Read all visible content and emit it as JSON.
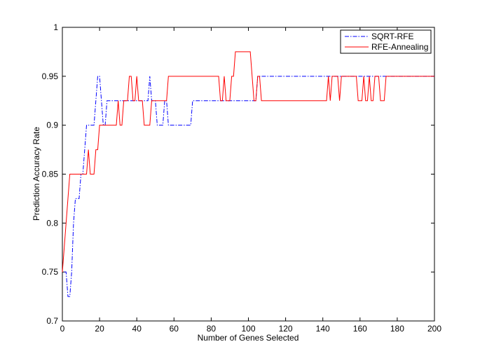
{
  "chart_data": {
    "type": "line",
    "title": "",
    "xlabel": "Number of Genes Selected",
    "ylabel": "Prediction Accuracy Rate",
    "xlim": [
      0,
      200
    ],
    "ylim": [
      0.7,
      1
    ],
    "xticks": [
      0,
      20,
      40,
      60,
      80,
      100,
      120,
      140,
      160,
      180,
      200
    ],
    "yticks": [
      0.7,
      0.75,
      0.8,
      0.85,
      0.9,
      0.95,
      1
    ],
    "xtick_labels": [
      "0",
      "20",
      "40",
      "60",
      "80",
      "100",
      "120",
      "140",
      "160",
      "180",
      "200"
    ],
    "ytick_labels": [
      "0.7",
      "0.75",
      "0.8",
      "0.85",
      "0.9",
      "0.95",
      "1"
    ],
    "grid": false,
    "legend_position": "top-right",
    "series": [
      {
        "name": "SQRT-RFE",
        "color": "#0000ff",
        "style": "dash-dot",
        "points": [
          [
            1,
            0.75
          ],
          [
            2,
            0.75
          ],
          [
            3,
            0.725
          ],
          [
            4,
            0.725
          ],
          [
            5,
            0.75
          ],
          [
            6,
            0.8
          ],
          [
            7,
            0.825
          ],
          [
            8,
            0.825
          ],
          [
            9,
            0.825
          ],
          [
            10,
            0.85
          ],
          [
            11,
            0.85
          ],
          [
            12,
            0.875
          ],
          [
            13,
            0.9
          ],
          [
            14,
            0.9
          ],
          [
            15,
            0.9
          ],
          [
            16,
            0.9
          ],
          [
            17,
            0.9
          ],
          [
            18,
            0.925
          ],
          [
            19,
            0.95
          ],
          [
            20,
            0.95
          ],
          [
            21,
            0.925
          ],
          [
            22,
            0.9
          ],
          [
            23,
            0.9
          ],
          [
            24,
            0.925
          ],
          [
            25,
            0.925
          ],
          [
            26,
            0.925
          ],
          [
            30,
            0.925
          ],
          [
            35,
            0.925
          ],
          [
            40,
            0.925
          ],
          [
            44,
            0.925
          ],
          [
            45,
            0.925
          ],
          [
            46,
            0.925
          ],
          [
            47,
            0.95
          ],
          [
            48,
            0.925
          ],
          [
            49,
            0.925
          ],
          [
            50,
            0.925
          ],
          [
            51,
            0.9
          ],
          [
            52,
            0.9
          ],
          [
            53,
            0.9
          ],
          [
            54,
            0.9
          ],
          [
            55,
            0.925
          ],
          [
            56,
            0.925
          ],
          [
            57,
            0.9
          ],
          [
            60,
            0.9
          ],
          [
            65,
            0.9
          ],
          [
            69,
            0.9
          ],
          [
            70,
            0.925
          ],
          [
            80,
            0.925
          ],
          [
            90,
            0.925
          ],
          [
            100,
            0.925
          ],
          [
            104,
            0.925
          ],
          [
            105,
            0.95
          ],
          [
            110,
            0.95
          ],
          [
            120,
            0.95
          ],
          [
            130,
            0.95
          ],
          [
            140,
            0.95
          ],
          [
            150,
            0.95
          ],
          [
            160,
            0.95
          ],
          [
            170,
            0.95
          ],
          [
            180,
            0.95
          ],
          [
            190,
            0.95
          ],
          [
            200,
            0.95
          ]
        ]
      },
      {
        "name": "RFE-Annealing",
        "color": "#ff0000",
        "style": "solid",
        "points": [
          [
            0,
            0.75
          ],
          [
            1,
            0.775
          ],
          [
            2,
            0.8
          ],
          [
            3,
            0.825
          ],
          [
            4,
            0.85
          ],
          [
            5,
            0.85
          ],
          [
            10,
            0.85
          ],
          [
            12,
            0.85
          ],
          [
            13,
            0.85
          ],
          [
            14,
            0.875
          ],
          [
            15,
            0.85
          ],
          [
            16,
            0.85
          ],
          [
            17,
            0.85
          ],
          [
            18,
            0.875
          ],
          [
            19,
            0.875
          ],
          [
            20,
            0.9
          ],
          [
            21,
            0.9
          ],
          [
            22,
            0.9
          ],
          [
            23,
            0.9
          ],
          [
            27,
            0.9
          ],
          [
            29,
            0.9
          ],
          [
            30,
            0.925
          ],
          [
            31,
            0.9
          ],
          [
            32,
            0.9
          ],
          [
            33,
            0.925
          ],
          [
            34,
            0.925
          ],
          [
            35,
            0.925
          ],
          [
            36,
            0.95
          ],
          [
            37,
            0.95
          ],
          [
            38,
            0.925
          ],
          [
            39,
            0.925
          ],
          [
            40,
            0.95
          ],
          [
            41,
            0.925
          ],
          [
            42,
            0.925
          ],
          [
            43,
            0.925
          ],
          [
            44,
            0.9
          ],
          [
            45,
            0.9
          ],
          [
            46,
            0.9
          ],
          [
            47,
            0.9
          ],
          [
            48,
            0.925
          ],
          [
            49,
            0.925
          ],
          [
            50,
            0.925
          ],
          [
            53,
            0.925
          ],
          [
            54,
            0.925
          ],
          [
            55,
            0.925
          ],
          [
            56,
            0.925
          ],
          [
            57,
            0.95
          ],
          [
            60,
            0.95
          ],
          [
            70,
            0.95
          ],
          [
            80,
            0.95
          ],
          [
            84,
            0.95
          ],
          [
            85,
            0.925
          ],
          [
            86,
            0.925
          ],
          [
            87,
            0.95
          ],
          [
            88,
            0.925
          ],
          [
            89,
            0.925
          ],
          [
            90,
            0.925
          ],
          [
            91,
            0.95
          ],
          [
            92,
            0.95
          ],
          [
            93,
            0.975
          ],
          [
            94,
            0.975
          ],
          [
            98,
            0.975
          ],
          [
            99,
            0.975
          ],
          [
            100,
            0.975
          ],
          [
            101,
            0.975
          ],
          [
            102,
            0.95
          ],
          [
            103,
            0.925
          ],
          [
            104,
            0.925
          ],
          [
            105,
            0.95
          ],
          [
            106,
            0.95
          ],
          [
            107,
            0.925
          ],
          [
            110,
            0.925
          ],
          [
            120,
            0.925
          ],
          [
            130,
            0.925
          ],
          [
            140,
            0.925
          ],
          [
            142,
            0.925
          ],
          [
            143,
            0.95
          ],
          [
            144,
            0.925
          ],
          [
            145,
            0.95
          ],
          [
            146,
            0.95
          ],
          [
            147,
            0.95
          ],
          [
            148,
            0.95
          ],
          [
            149,
            0.925
          ],
          [
            150,
            0.95
          ],
          [
            151,
            0.95
          ],
          [
            155,
            0.95
          ],
          [
            158,
            0.95
          ],
          [
            159,
            0.925
          ],
          [
            160,
            0.925
          ],
          [
            161,
            0.925
          ],
          [
            162,
            0.95
          ],
          [
            163,
            0.925
          ],
          [
            164,
            0.925
          ],
          [
            165,
            0.95
          ],
          [
            166,
            0.925
          ],
          [
            167,
            0.925
          ],
          [
            168,
            0.95
          ],
          [
            169,
            0.95
          ],
          [
            170,
            0.95
          ],
          [
            171,
            0.925
          ],
          [
            172,
            0.925
          ],
          [
            173,
            0.925
          ],
          [
            174,
            0.95
          ],
          [
            175,
            0.95
          ],
          [
            180,
            0.95
          ],
          [
            190,
            0.95
          ],
          [
            200,
            0.95
          ]
        ]
      }
    ]
  }
}
